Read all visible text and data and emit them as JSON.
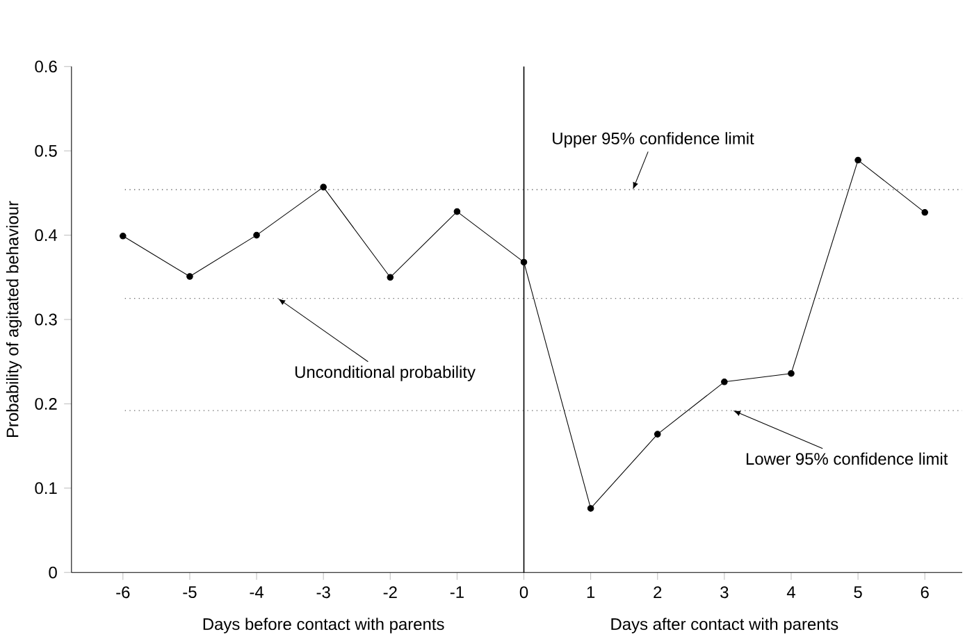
{
  "chart_data": {
    "type": "line",
    "ylabel": "Probability of agitated behaviour",
    "xlabel": "Days before contact with parents",
    "x": [
      -6,
      -5,
      -4,
      -3,
      -2,
      -1,
      0,
      1,
      2,
      3,
      4,
      5,
      6
    ],
    "series": [
      {
        "color": "#000000",
        "values": [
          0.399,
          0.351,
          0.4,
          0.457,
          0.35,
          0.428,
          0.368,
          0.076,
          0.164,
          0.226,
          0.236,
          0.489,
          0.427
        ]
      }
    ],
    "marker": "circle",
    "line_style": "solid",
    "grid": false,
    "xlim": [
      -6.77,
      6.56
    ],
    "ylim": [
      0,
      0.6
    ],
    "xticks": [
      -6,
      -5,
      -4,
      -3,
      -2,
      -1,
      0,
      1,
      2,
      3,
      4,
      5,
      6
    ],
    "yticks": [
      0,
      0.1,
      0.2,
      0.3,
      0.4,
      0.5,
      0.6
    ],
    "ref_lines": [
      {
        "axis": "x",
        "value": 0,
        "color": "#000000",
        "line_style": "solid"
      },
      {
        "axis": "y",
        "value": 0.454,
        "color": "#666666",
        "line_style": "dotted"
      },
      {
        "axis": "y",
        "value": 0.325,
        "color": "#666666",
        "line_style": "dotted"
      },
      {
        "axis": "y",
        "value": 0.192,
        "color": "#666666",
        "line_style": "dotted"
      }
    ],
    "annotations": [
      {
        "text": "Unconditional probability",
        "x": -3.68,
        "y": 0.325
      },
      {
        "text": "Upper 95% confidence limit",
        "x": 1.63,
        "y": 0.454
      },
      {
        "text": "Lower 95% confidence limit",
        "x": 3.13,
        "y": 0.192
      },
      "Days after contact with parents"
    ]
  }
}
